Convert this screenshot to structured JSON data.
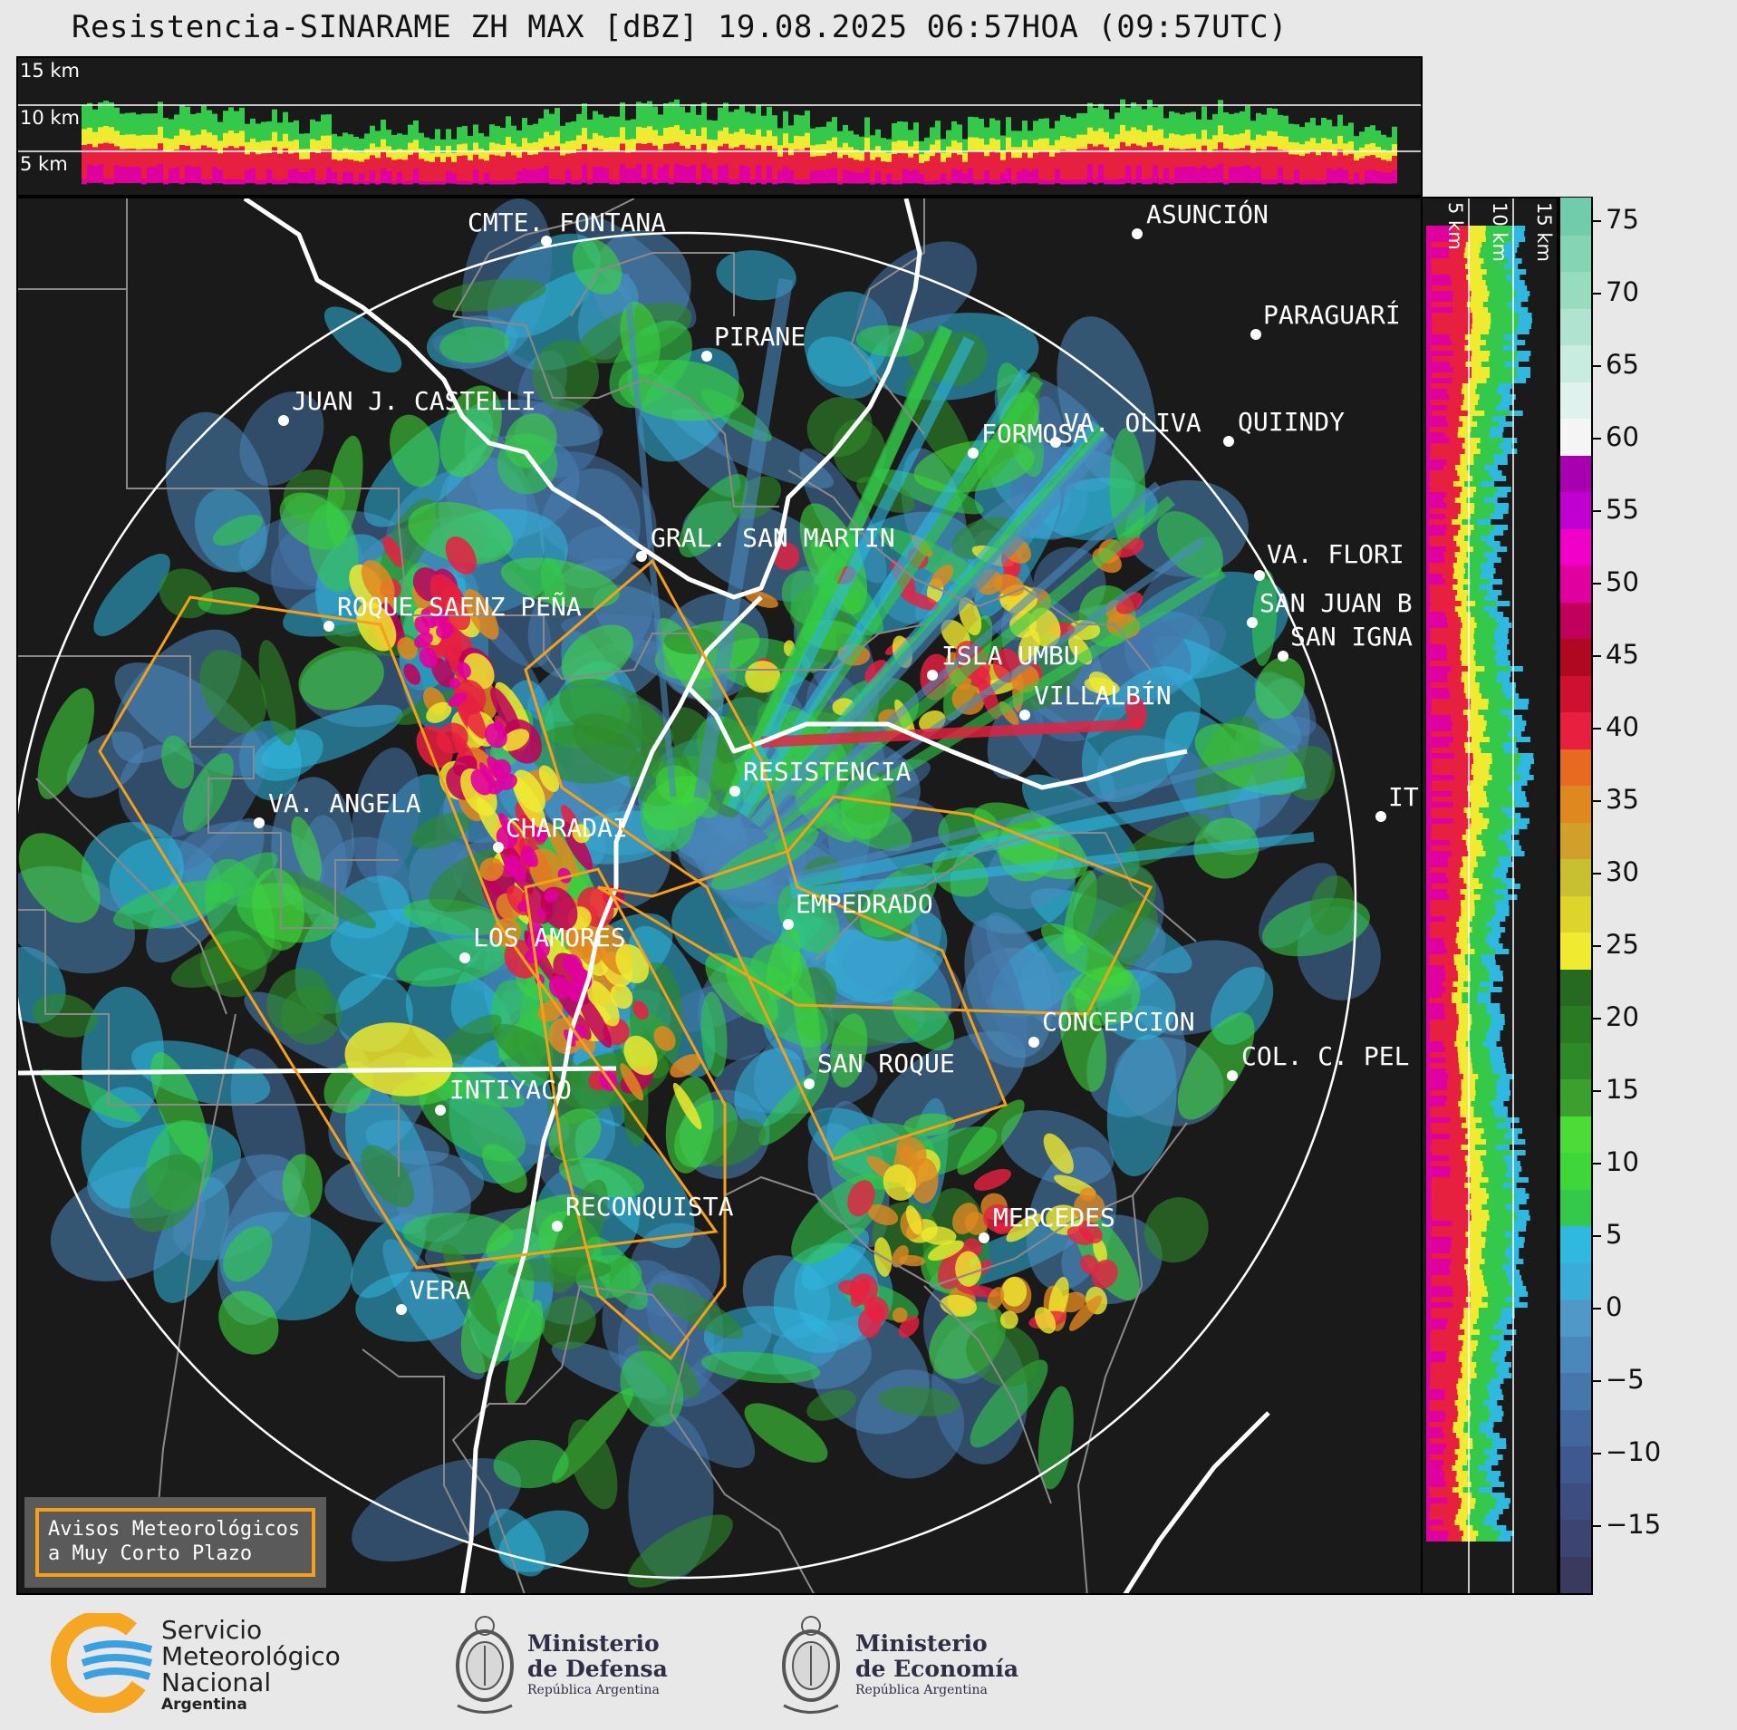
{
  "header": {
    "title": "Resistencia-SINARAME ZH MAX [dBZ] 19.08.2025 06:57HOA (09:57UTC)"
  },
  "cross_sections": {
    "top_labels": [
      "15 km",
      "10 km",
      "5 km"
    ],
    "right_labels": [
      "5 km",
      "10 km",
      "15 km"
    ]
  },
  "colorbar": {
    "unit": "dBZ",
    "ticks": [
      "75",
      "70",
      "65",
      "60",
      "55",
      "50",
      "45",
      "40",
      "35",
      "30",
      "25",
      "20",
      "15",
      "10",
      "5",
      "0",
      "−5",
      "−10",
      "−15"
    ],
    "range": [
      -20,
      76
    ]
  },
  "cities": [
    {
      "name": "CMTE. FONTANA"
    },
    {
      "name": "ASUNCIÓN"
    },
    {
      "name": "PARAGUARÍ"
    },
    {
      "name": "PIRANE"
    },
    {
      "name": "JUAN J. CASTELLI"
    },
    {
      "name": "VA. OLIVA"
    },
    {
      "name": "QUIINDY"
    },
    {
      "name": "FORMOSA"
    },
    {
      "name": "VA. FLORI"
    },
    {
      "name": "GRAL. SAN MARTIN"
    },
    {
      "name": "SAN JUAN B"
    },
    {
      "name": "ROQUE SAENZ PEÑA"
    },
    {
      "name": "SAN IGNA"
    },
    {
      "name": "ISLA UMBU"
    },
    {
      "name": "VILLALBÍN"
    },
    {
      "name": "RESISTENCIA"
    },
    {
      "name": "VA. ANGELA"
    },
    {
      "name": "CHARADAI"
    },
    {
      "name": "IT"
    },
    {
      "name": "EMPEDRADO"
    },
    {
      "name": "LOS AMORES"
    },
    {
      "name": "CONCEPCION"
    },
    {
      "name": "SAN ROQUE"
    },
    {
      "name": "COL. C. PEL"
    },
    {
      "name": "INTIYACO"
    },
    {
      "name": "RECONQUISTA"
    },
    {
      "name": "MERCEDES"
    },
    {
      "name": "VERA"
    }
  ],
  "warning_box": {
    "line1": "Avisos Meteorológicos",
    "line2": "a Muy Corto Plazo"
  },
  "footer": {
    "smn": {
      "line1": "Servicio",
      "line2": "Meteorológico",
      "line3": "Nacional",
      "line4": "Argentina"
    },
    "defensa": {
      "line1": "Ministerio",
      "line2": "de Defensa",
      "line3": "República Argentina"
    },
    "economia": {
      "line1": "Ministerio",
      "line2": "de Economía",
      "line3": "República Argentina"
    }
  },
  "colors": {
    "warning_polygon": "#f5a01a",
    "background": "#1a1a1a",
    "smn_blue": "#3aa0e0",
    "smn_orange": "#f5a623"
  }
}
